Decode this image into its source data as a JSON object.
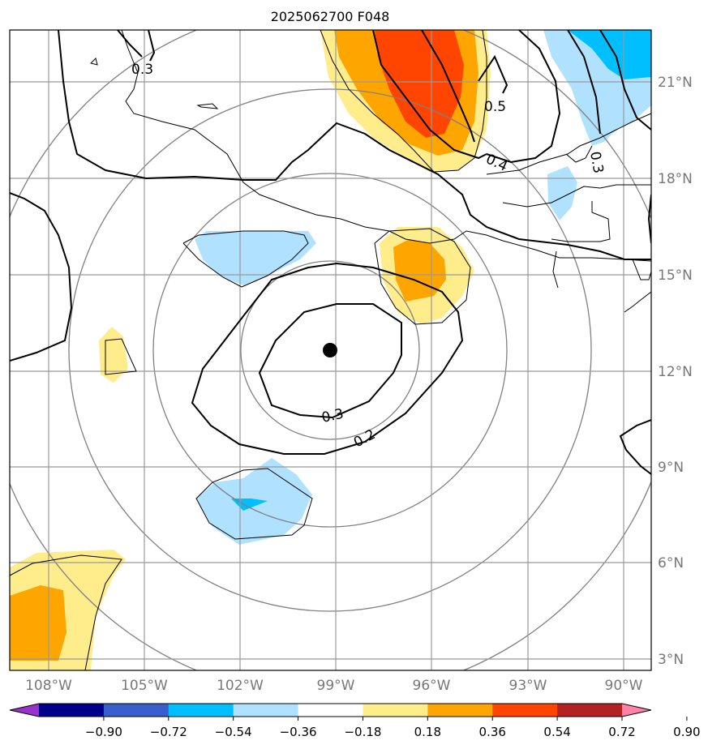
{
  "title": "2025062700 F048",
  "lon_labels": [
    "108°W",
    "105°W",
    "102°W",
    "99°W",
    "96°W",
    "93°W",
    "90°W"
  ],
  "lat_labels": [
    "21°N",
    "18°N",
    "15°N",
    "12°N",
    "9°N",
    "6°N",
    "3°N"
  ],
  "contour_labels": [
    "0.3",
    "0.5",
    "0.4",
    "0.3",
    "0.3",
    "0.2"
  ],
  "colorbar": {
    "tick_labels": [
      "−0.90",
      "−0.72",
      "−0.54",
      "−0.36",
      "−0.18",
      "0.18",
      "0.36",
      "0.54",
      "0.72",
      "0.90"
    ],
    "colors": [
      "#9932CC",
      "#00008B",
      "#3A5FCD",
      "#00BFFF",
      "#B0E2FF",
      "#FFFFFF",
      "#FFEC8B",
      "#FFA500",
      "#FF4500",
      "#B22222",
      "#FF82AB"
    ]
  },
  "colors": {
    "light_blue": "#B0E2FF",
    "deep_sky_blue": "#00BFFF",
    "light_yellow": "#FFEC8B",
    "orange": "#FFA500",
    "orange_red": "#FF4500",
    "grid": "#999999",
    "range_rings": "#808080"
  },
  "storm_center_marker": "filled-circle"
}
